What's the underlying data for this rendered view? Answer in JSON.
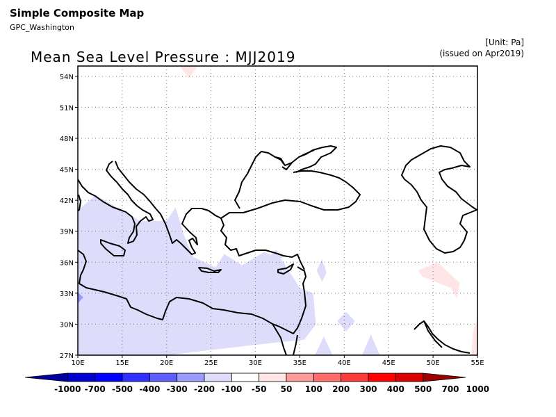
{
  "header": {
    "title": "Simple Composite Map",
    "source": "GPC_Washington",
    "unit": "[Unit: Pa]",
    "issued": "(issued on Apr2019)"
  },
  "map": {
    "title": "Mean Sea Level Pressure : MJJ2019",
    "lon_ticks": [
      "10E",
      "15E",
      "20E",
      "25E",
      "30E",
      "35E",
      "40E",
      "45E",
      "50E",
      "55E"
    ],
    "lat_ticks": [
      "27N",
      "30N",
      "33N",
      "36N",
      "39N",
      "42N",
      "45N",
      "48N",
      "51N",
      "54N"
    ],
    "lon_range": [
      10,
      55
    ],
    "lat_range": [
      27,
      55
    ],
    "grid": true
  },
  "colorbar": {
    "labels": [
      "-1000",
      "-700",
      "-500",
      "-400",
      "-300",
      "-200",
      "-100",
      "-50",
      "50",
      "100",
      "200",
      "300",
      "400",
      "500",
      "700",
      "1000"
    ],
    "colors": [
      "#0000a0",
      "#0000d0",
      "#0000ff",
      "#3030ff",
      "#5e5eff",
      "#9a9aff",
      "#ddddfb",
      "#ffffff",
      "#ffe6e6",
      "#ff9a9a",
      "#ff6c6c",
      "#ff3a3a",
      "#ff0000",
      "#d80000",
      "#a00000"
    ]
  },
  "chart_data": {
    "type": "heatmap",
    "title": "Mean Sea Level Pressure : MJJ2019",
    "variable": "Mean Sea Level Pressure anomaly",
    "unit": "Pa",
    "x_range": [
      10,
      55
    ],
    "y_range": [
      27,
      55
    ],
    "regions": [
      {
        "name": "negative anomaly, western Mediterranean & Libya",
        "class": "-100 to -50",
        "color": "#ddddfb",
        "lonlat": [
          [
            10,
            41
          ],
          [
            12,
            42.5
          ],
          [
            14,
            41.5
          ],
          [
            17,
            40
          ],
          [
            20,
            40
          ],
          [
            21,
            41.3
          ],
          [
            22,
            38.5
          ],
          [
            23,
            36.5
          ],
          [
            25.5,
            35.5
          ],
          [
            26.5,
            36.8
          ],
          [
            28.5,
            35.7
          ],
          [
            31,
            37
          ],
          [
            33,
            36.2
          ],
          [
            35,
            33.5
          ],
          [
            36.5,
            33
          ],
          [
            36.8,
            30
          ],
          [
            35.5,
            28.5
          ],
          [
            30,
            28
          ],
          [
            20,
            27
          ],
          [
            10,
            27
          ]
        ]
      },
      {
        "name": "negative anomaly, Cyprus east",
        "class": "-100 to -50",
        "color": "#ddddfb",
        "lonlat": [
          [
            31.5,
            36.5
          ],
          [
            32.3,
            37.2
          ],
          [
            33.2,
            36.6
          ],
          [
            32.3,
            35.9
          ]
        ]
      },
      {
        "name": "negative anomaly, Syria",
        "class": "-100 to -50",
        "color": "#ddddfb",
        "lonlat": [
          [
            36.9,
            35.2
          ],
          [
            37.5,
            36.3
          ],
          [
            38.0,
            35.0
          ],
          [
            37.5,
            34.1
          ]
        ]
      },
      {
        "name": "negative anomaly, Arabia",
        "class": "-100 to -50",
        "color": "#ddddfb",
        "lonlat": [
          [
            39.2,
            30.3
          ],
          [
            40.2,
            31.2
          ],
          [
            41.2,
            30.3
          ],
          [
            40.2,
            29.3
          ]
        ]
      },
      {
        "name": "negative anomaly, NW Arabia",
        "class": "-100 to -50",
        "color": "#ddddfb",
        "lonlat": [
          [
            36.7,
            27
          ],
          [
            37.7,
            28.8
          ],
          [
            38.7,
            27
          ]
        ]
      },
      {
        "name": "negative anomaly, central Arabia",
        "class": "-100 to -50",
        "color": "#ddddfb",
        "lonlat": [
          [
            42.0,
            27
          ],
          [
            43.0,
            29
          ],
          [
            44.0,
            27
          ]
        ]
      },
      {
        "name": "negative anomaly, Tunisia coast",
        "class": "-200 to -100",
        "color": "#9a9aff",
        "lonlat": [
          [
            10,
            33.1
          ],
          [
            10.6,
            32.6
          ],
          [
            10,
            32.0
          ]
        ]
      },
      {
        "name": "positive anomaly, Iran",
        "class": "50 to 100",
        "color": "#ffe6e6",
        "lonlat": [
          [
            48.3,
            35.2
          ],
          [
            50.5,
            36.0
          ],
          [
            53,
            34.0
          ],
          [
            52.7,
            32.5
          ],
          [
            52.0,
            33.5
          ],
          [
            50,
            34.2
          ],
          [
            48.8,
            34.6
          ]
        ]
      },
      {
        "name": "positive anomaly, Persian Gulf",
        "class": "50 to 100",
        "color": "#ffe6e6",
        "lonlat": [
          [
            54.3,
            27
          ],
          [
            54.5,
            29.3
          ],
          [
            55,
            30.5
          ],
          [
            55,
            27
          ]
        ]
      },
      {
        "name": "positive anomaly, north edge",
        "class": "50 to 100",
        "color": "#ffe6e6",
        "lonlat": [
          [
            21.5,
            55
          ],
          [
            22.5,
            53.8
          ],
          [
            23.5,
            55
          ]
        ]
      }
    ]
  }
}
